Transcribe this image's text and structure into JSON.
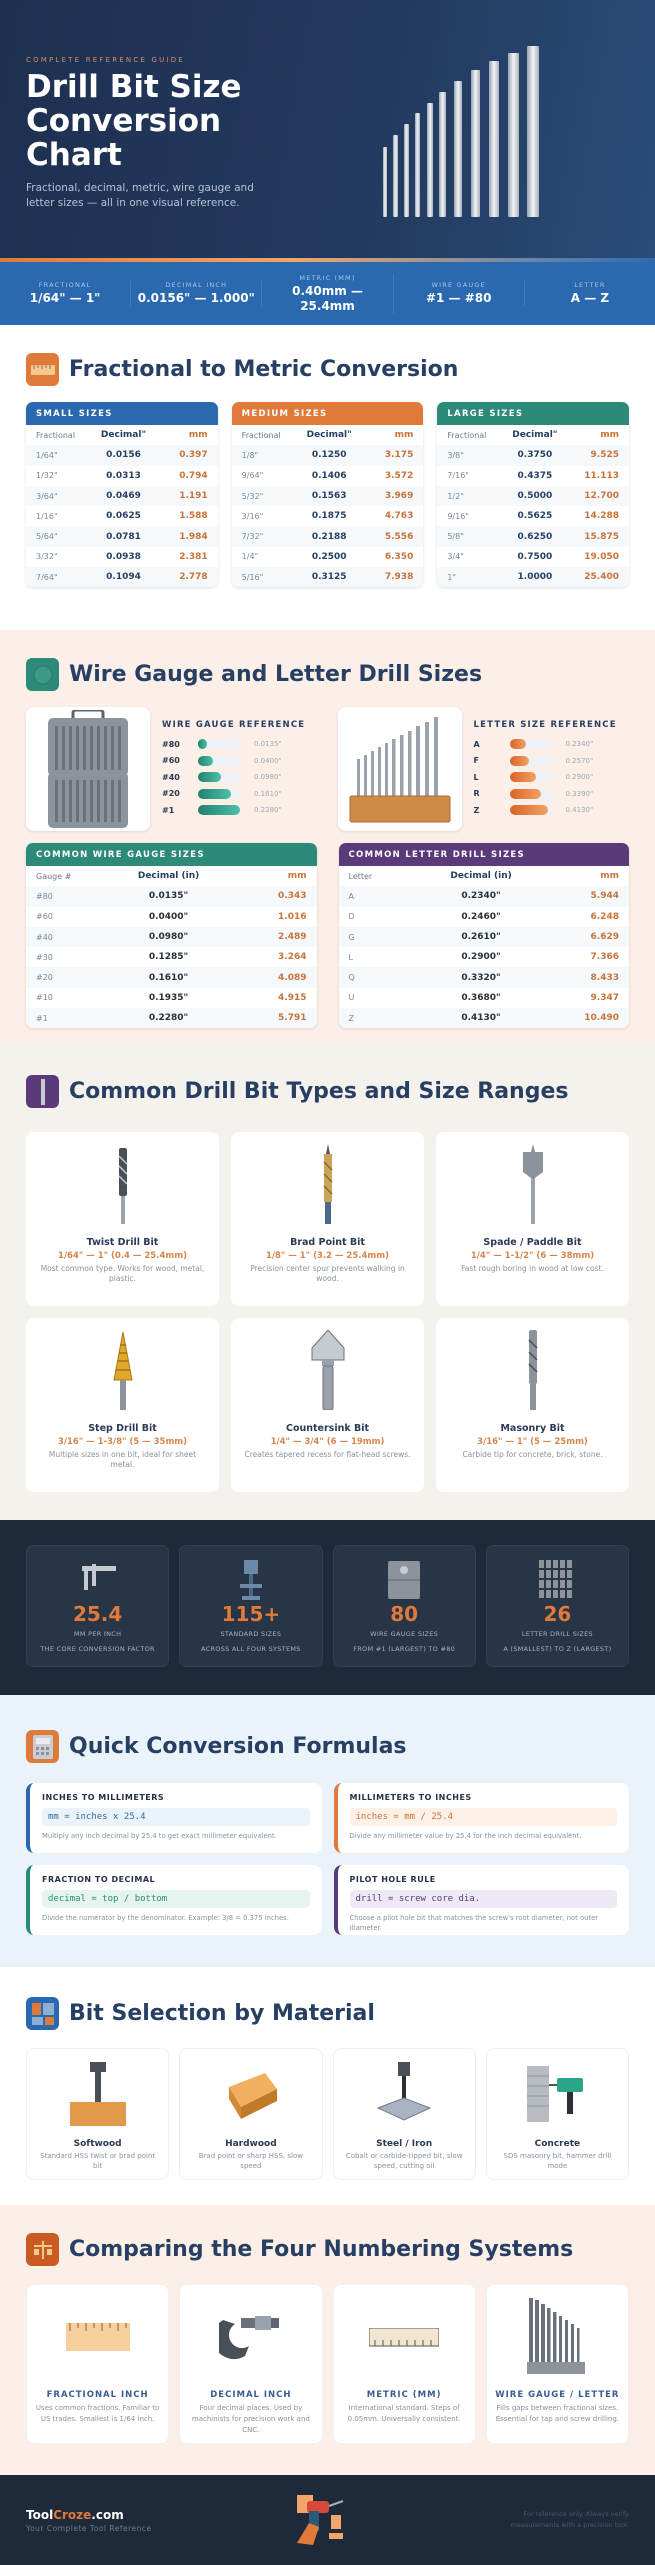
{
  "hero": {
    "eyebrow": "COMPLETE REFERENCE GUIDE",
    "title": "Drill Bit Size Conversion Chart",
    "subtitle": "Fractional, decimal, metric, wire gauge and letter sizes — all in one visual reference."
  },
  "stat_bar": [
    {
      "label": "FRACTIONAL",
      "value": "1/64\" — 1\""
    },
    {
      "label": "DECIMAL INCH",
      "value": "0.0156\" — 1.000\""
    },
    {
      "label": "METRIC (MM)",
      "value": "0.40mm — 25.4mm"
    },
    {
      "label": "WIRE GAUGE",
      "value": "#1 — #80"
    },
    {
      "label": "LETTER",
      "value": "A — Z"
    }
  ],
  "fractional": {
    "title": "Fractional to Metric Conversion",
    "columns": [
      "Fractional",
      "Decimal\"",
      "mm"
    ],
    "tables": [
      {
        "name": "SMALL SIZES",
        "color": "#2a69b0",
        "rows": [
          [
            "1/64\"",
            "0.0156",
            "0.397"
          ],
          [
            "1/32\"",
            "0.0313",
            "0.794"
          ],
          [
            "3/64\"",
            "0.0469",
            "1.191"
          ],
          [
            "1/16\"",
            "0.0625",
            "1.588"
          ],
          [
            "5/64\"",
            "0.0781",
            "1.984"
          ],
          [
            "3/32\"",
            "0.0938",
            "2.381"
          ],
          [
            "7/64\"",
            "0.1094",
            "2.778"
          ]
        ]
      },
      {
        "name": "MEDIUM SIZES",
        "color": "#e07a3a",
        "rows": [
          [
            "1/8\"",
            "0.1250",
            "3.175"
          ],
          [
            "9/64\"",
            "0.1406",
            "3.572"
          ],
          [
            "5/32\"",
            "0.1563",
            "3.969"
          ],
          [
            "3/16\"",
            "0.1875",
            "4.763"
          ],
          [
            "7/32\"",
            "0.2188",
            "5.556"
          ],
          [
            "1/4\"",
            "0.2500",
            "6.350"
          ],
          [
            "5/16\"",
            "0.3125",
            "7.938"
          ]
        ]
      },
      {
        "name": "LARGE SIZES",
        "color": "#2e8a78",
        "rows": [
          [
            "3/8\"",
            "0.3750",
            "9.525"
          ],
          [
            "7/16\"",
            "0.4375",
            "11.113"
          ],
          [
            "1/2\"",
            "0.5000",
            "12.700"
          ],
          [
            "9/16\"",
            "0.5625",
            "14.288"
          ],
          [
            "5/8\"",
            "0.6250",
            "15.875"
          ],
          [
            "3/4\"",
            "0.7500",
            "19.050"
          ],
          [
            "1\"",
            "1.0000",
            "25.400"
          ]
        ]
      }
    ]
  },
  "gauge": {
    "title": "Wire Gauge and Letter Drill Sizes",
    "wire_ref": {
      "title": "WIRE GAUGE REFERENCE",
      "items": [
        {
          "key": "#80",
          "value": "0.0135\"",
          "pct": 22
        },
        {
          "key": "#60",
          "value": "0.0400\"",
          "pct": 35
        },
        {
          "key": "#40",
          "value": "0.0980\"",
          "pct": 55
        },
        {
          "key": "#20",
          "value": "0.1610\"",
          "pct": 78
        },
        {
          "key": "#1",
          "value": "0.2280\"",
          "pct": 100
        }
      ]
    },
    "letter_ref": {
      "title": "LETTER SIZE REFERENCE",
      "items": [
        {
          "key": "A",
          "value": "0.2340\"",
          "pct": 40
        },
        {
          "key": "F",
          "value": "0.2570\"",
          "pct": 47
        },
        {
          "key": "L",
          "value": "0.2900\"",
          "pct": 62
        },
        {
          "key": "R",
          "value": "0.3390\"",
          "pct": 76
        },
        {
          "key": "Z",
          "value": "0.4130\"",
          "pct": 92
        }
      ]
    },
    "wire_table": {
      "name": "COMMON WIRE GAUGE SIZES",
      "color": "#2e8a78",
      "columns": [
        "Gauge #",
        "Decimal (in)",
        "mm"
      ],
      "rows": [
        [
          "#80",
          "0.0135\"",
          "0.343"
        ],
        [
          "#60",
          "0.0400\"",
          "1.016"
        ],
        [
          "#40",
          "0.0980\"",
          "2.489"
        ],
        [
          "#30",
          "0.1285\"",
          "3.264"
        ],
        [
          "#20",
          "0.1610\"",
          "4.089"
        ],
        [
          "#10",
          "0.1935\"",
          "4.915"
        ],
        [
          "#1",
          "0.2280\"",
          "5.791"
        ]
      ]
    },
    "letter_table": {
      "name": "COMMON LETTER DRILL SIZES",
      "color": "#5a3a78",
      "columns": [
        "Letter",
        "Decimal (in)",
        "mm"
      ],
      "rows": [
        [
          "A",
          "0.2340\"",
          "5.944"
        ],
        [
          "D",
          "0.2460\"",
          "6.248"
        ],
        [
          "G",
          "0.2610\"",
          "6.629"
        ],
        [
          "L",
          "0.2900\"",
          "7.366"
        ],
        [
          "Q",
          "0.3320\"",
          "8.433"
        ],
        [
          "U",
          "0.3680\"",
          "9.347"
        ],
        [
          "Z",
          "0.4130\"",
          "10.490"
        ]
      ]
    }
  },
  "types": {
    "title": "Common Drill Bit Types and Size Ranges",
    "cards": [
      {
        "name": "Twist Drill Bit",
        "range": "1/64\" — 1\" (0.4 — 25.4mm)",
        "desc": "Most common type. Works for wood, metal, plastic."
      },
      {
        "name": "Brad Point Bit",
        "range": "1/8\" — 1\" (3.2 — 25.4mm)",
        "desc": "Precision center spur prevents walking in wood."
      },
      {
        "name": "Spade / Paddle Bit",
        "range": "1/4\" — 1-1/2\" (6 — 38mm)",
        "desc": "Fast rough boring in wood at low cost."
      },
      {
        "name": "Step Drill Bit",
        "range": "3/16\" — 1-3/8\" (5 — 35mm)",
        "desc": "Multiple sizes in one bit, ideal for sheet metal."
      },
      {
        "name": "Countersink Bit",
        "range": "1/4\" — 3/4\" (6 — 19mm)",
        "desc": "Creates tapered recess for flat-head screws."
      },
      {
        "name": "Masonry Bit",
        "range": "3/16\" — 1\" (5 — 25mm)",
        "desc": "Carbide tip for concrete, brick, stone."
      }
    ]
  },
  "stats": [
    {
      "icon": "caliper-icon",
      "value": "25.4",
      "line1": "MM PER INCH",
      "line2": "THE CORE CONVERSION FACTOR"
    },
    {
      "icon": "drill-press-icon",
      "value": "115+",
      "line1": "STANDARD SIZES",
      "line2": "ACROSS ALL FOUR SYSTEMS"
    },
    {
      "icon": "bit-case-icon",
      "value": "80",
      "line1": "WIRE GAUGE SIZES",
      "line2": "FROM #1 (LARGEST) TO #80"
    },
    {
      "icon": "letter-grid-icon",
      "value": "26",
      "line1": "LETTER DRILL SIZES",
      "line2": "A (SMALLEST) TO Z (LARGEST)"
    }
  ],
  "formulas": {
    "title": "Quick Conversion Formulas",
    "cards": [
      {
        "title": "INCHES TO MILLIMETERS",
        "code": "mm = inches x 25.4",
        "desc": "Multiply any inch decimal by 25.4 to get exact millimeter equivalent.",
        "accent": "#2a69b0"
      },
      {
        "title": "MILLIMETERS TO INCHES",
        "code": "inches = mm / 25.4",
        "desc": "Divide any millimeter value by 25.4 for the inch decimal equivalent.",
        "accent": "#e07a3a"
      },
      {
        "title": "FRACTION TO DECIMAL",
        "code": "decimal = top / bottom",
        "desc": "Divide the numerator by the denominator. Example: 3/8 = 0.375 inches.",
        "accent": "#2e8a78"
      },
      {
        "title": "PILOT HOLE RULE",
        "code": "drill = screw core dia.",
        "desc": "Choose a pilot hole bit that matches the screw's root diameter, not outer diameter.",
        "accent": "#5a3a78"
      }
    ]
  },
  "materials": {
    "title": "Bit Selection by Material",
    "cards": [
      {
        "name": "Softwood",
        "desc": "Standard HSS twist or brad point bit"
      },
      {
        "name": "Hardwood",
        "desc": "Brad point or sharp HSS, slow speed"
      },
      {
        "name": "Steel / Iron",
        "desc": "Cobalt or carbide-tipped bit, slow speed, cutting oil"
      },
      {
        "name": "Concrete",
        "desc": "SDS masonry bit, hammer drill mode"
      }
    ]
  },
  "systems": {
    "title": "Comparing the Four Numbering Systems",
    "cards": [
      {
        "name": "FRACTIONAL INCH",
        "desc": "Uses common fractions. Familiar to US trades. Smallest is 1/64 inch."
      },
      {
        "name": "DECIMAL INCH",
        "desc": "Four decimal places. Used by machinists for precision work and CNC."
      },
      {
        "name": "METRIC (MM)",
        "desc": "International standard. Steps of 0.05mm. Universally consistent."
      },
      {
        "name": "WIRE GAUGE / LETTER",
        "desc": "Fills gaps between fractional sizes. Essential for tap and screw drilling."
      }
    ]
  },
  "footer": {
    "brand_a": "Tool",
    "brand_b": "Croze",
    "brand_c": ".com",
    "tagline": "Your Complete Tool Reference",
    "disclaimer": "For reference only. Always verify measurements with a precision tool."
  }
}
